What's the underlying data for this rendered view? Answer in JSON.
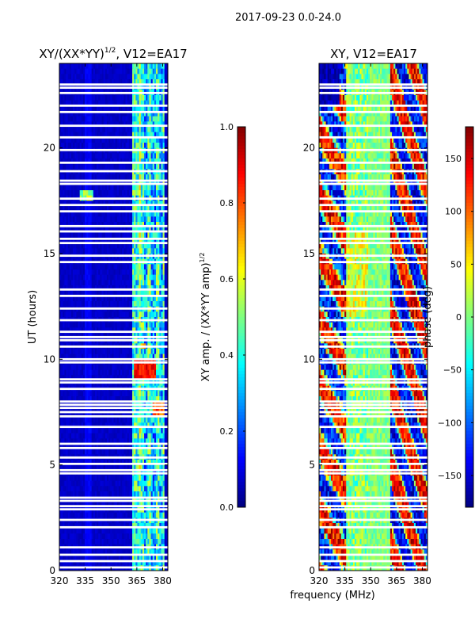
{
  "suptitle": "2017-09-23 0.0-24.0",
  "shared_xlabel": "frequency (MHz)",
  "chart_data": [
    {
      "type": "heatmap",
      "title": "XY/(XX*YY)",
      "title_superscript": "1/2",
      "title_suffix": ", V12=EA17",
      "xlabel": "",
      "ylabel": "UT (hours)",
      "xlim": [
        320,
        383
      ],
      "ylim": [
        0,
        24
      ],
      "xticks": [
        320,
        335,
        350,
        365,
        380
      ],
      "yticks": [
        0,
        5,
        10,
        15,
        20
      ],
      "colorbar": {
        "label": "XY amp. / (XX*YY amp)",
        "label_superscript": "1/2",
        "range": [
          0.0,
          1.0
        ],
        "ticks": [
          "0.0",
          "0.2",
          "0.4",
          "0.6",
          "0.8",
          "1.0"
        ],
        "colormap": "jet"
      },
      "notes": "Mostly low values (~0.05); elevated amplitude columns between 362 and 381 MHz; bright feature near 18 h at 336 MHz; flagged (white) rows at many times."
    },
    {
      "type": "heatmap",
      "title": "XY, V12=EA17",
      "xlabel": "frequency (MHz)",
      "ylabel": "",
      "xlim": [
        320,
        383
      ],
      "ylim": [
        0,
        24
      ],
      "xticks": [
        320,
        335,
        350,
        365,
        380
      ],
      "yticks": [
        0,
        5,
        10,
        15,
        20
      ],
      "colorbar": {
        "label": "phase (deg)",
        "range": [
          -180,
          180
        ],
        "ticks": [
          "−150",
          "−100",
          "−50",
          "0",
          "50",
          "100",
          "150"
        ],
        "colormap": "jet"
      },
      "notes": "Phase mostly near 0 deg (green) with strong structure in 320-335 MHz and 360-383 MHz bands; flagged (white) rows at same times as amplitude panel."
    }
  ],
  "flagged_hours": [
    0.15,
    0.45,
    0.75,
    1.1,
    2.05,
    2.4,
    2.9,
    3.05,
    3.3,
    3.45,
    4.6,
    4.75,
    5.05,
    5.35,
    5.8,
    6.0,
    6.8,
    7.3,
    7.5,
    7.7,
    7.85,
    8.0,
    8.6,
    8.9,
    9.05,
    9.85,
    10.0,
    10.6,
    10.9,
    11.05,
    11.3,
    11.85,
    12.4,
    13.0,
    13.3,
    14.6,
    14.9,
    15.5,
    15.7,
    16.05,
    16.3,
    17.0,
    17.3,
    17.6,
    18.3,
    18.45,
    18.9,
    19.3,
    19.9,
    20.5,
    21.05,
    21.7,
    22.0,
    22.6,
    22.85,
    23.0
  ],
  "colors": {
    "axis": "#000000",
    "background": "#ffffff",
    "flag": "#ffffff"
  }
}
